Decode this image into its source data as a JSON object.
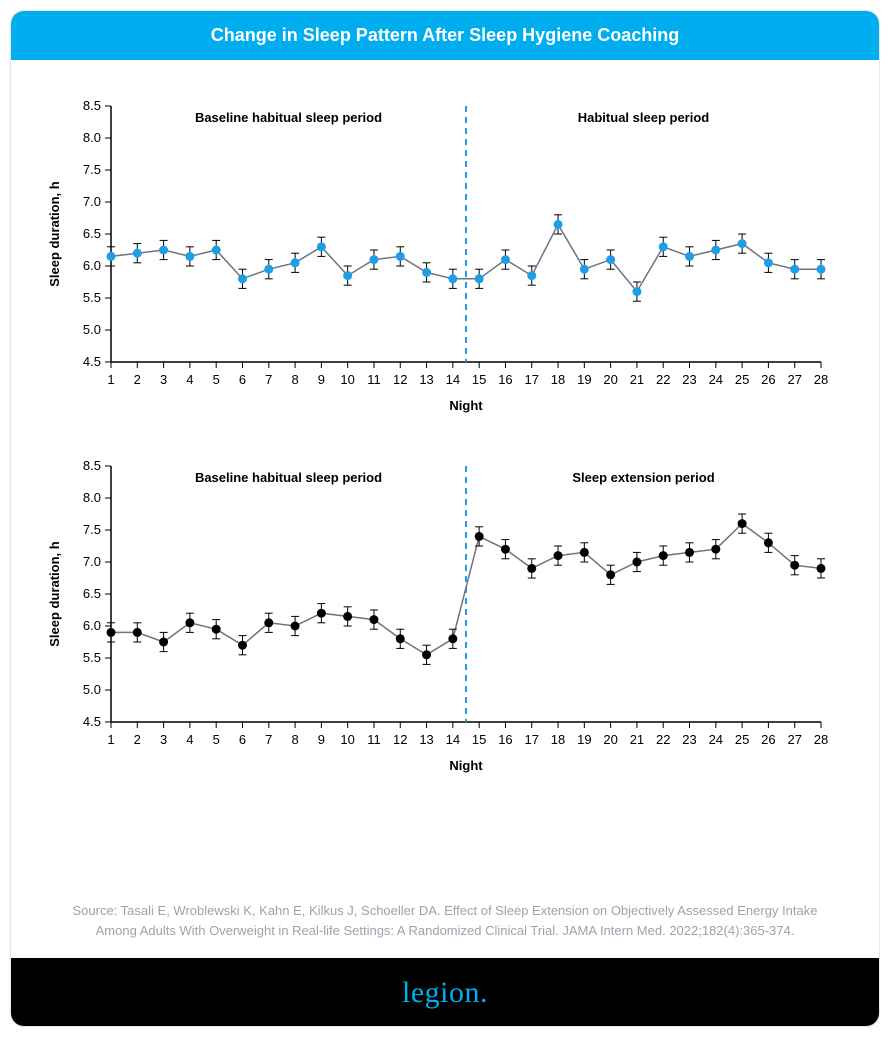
{
  "title": "Change in Sleep Pattern After Sleep Hygiene Coaching",
  "source": "Source: Tasali E, Wroblewski K, Kahn E, Kilkus J, Schoeller DA. Effect of Sleep Extension on Objectively Assessed Energy Intake Among Adults With Overweight in Real-life Settings: A Randomized Clinical Trial. JAMA Intern Med. 2022;182(4):365-374.",
  "logo": "legion.",
  "colors": {
    "header_bg": "#00aeef",
    "header_text": "#ffffff",
    "footer_bg": "#000000",
    "logo": "#00aeef",
    "axis": "#000000",
    "divider": "#1e9ee6"
  },
  "chart_common": {
    "x_label": "Night",
    "y_label": "Sleep duration, h",
    "x_values": [
      1,
      2,
      3,
      4,
      5,
      6,
      7,
      8,
      9,
      10,
      11,
      12,
      13,
      14,
      15,
      16,
      17,
      18,
      19,
      20,
      21,
      22,
      23,
      24,
      25,
      26,
      27,
      28
    ],
    "y_min": 4.5,
    "y_max": 8.5,
    "y_ticks": [
      4.5,
      5.0,
      5.5,
      6.0,
      6.5,
      7.0,
      7.5,
      8.0,
      8.5
    ],
    "divider_x": 14.5,
    "label_fontsize": 13,
    "tick_fontsize": 13,
    "anno_fontsize": 13,
    "marker_radius": 4.5,
    "line_width": 1.5,
    "error_cap_half": 4,
    "error_value": 0.15
  },
  "charts": [
    {
      "left_label": "Baseline habitual sleep period",
      "right_label": "Habitual sleep period",
      "marker_color": "#1e9ee6",
      "line_color": "#6b7280",
      "error_color": "#000000",
      "values": [
        6.15,
        6.2,
        6.25,
        6.15,
        6.25,
        5.8,
        5.95,
        6.05,
        6.3,
        5.85,
        6.1,
        6.15,
        5.9,
        5.8,
        5.8,
        6.1,
        5.85,
        6.65,
        5.95,
        6.1,
        5.6,
        6.3,
        6.15,
        6.25,
        6.35,
        6.05,
        5.95,
        5.95
      ]
    },
    {
      "left_label": "Baseline habitual sleep period",
      "right_label": "Sleep extension period",
      "marker_color": "#000000",
      "line_color": "#6b7280",
      "error_color": "#000000",
      "values": [
        5.9,
        5.9,
        5.75,
        6.05,
        5.95,
        5.7,
        6.05,
        6.0,
        6.2,
        6.15,
        6.1,
        5.8,
        5.55,
        5.8,
        7.4,
        7.2,
        6.9,
        7.1,
        7.15,
        6.8,
        7.0,
        7.1,
        7.15,
        7.2,
        7.6,
        7.3,
        6.95,
        6.9
      ]
    }
  ]
}
